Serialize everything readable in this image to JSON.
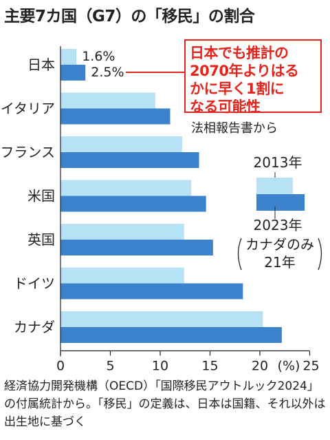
{
  "title": "主要7カ国（G7）の「移民」の割合",
  "callout": {
    "lines": [
      "日本でも推計の",
      "2070年よりはる",
      "かに早く1割に",
      "なる可能性"
    ]
  },
  "source": "法相報告書から",
  "legend": {
    "series_2013": "2013年",
    "series_2023": "2023年",
    "note_line1": "カナダのみ",
    "note_line2": "21年"
  },
  "footnote": "経済協力開発機構（OECD）「国際移民アウトルック2024」の付属統計から。「移民」の定義は、日本は国籍、それ以外は出生地に基づく",
  "colors": {
    "light": "#b7e1f4",
    "dark": "#3c82cc",
    "accent": "#e5231b"
  },
  "chart_data": {
    "type": "bar",
    "orientation": "horizontal",
    "title": "主要7カ国（G7）の「移民」の割合",
    "categories": [
      "日本",
      "イタリア",
      "フランス",
      "米国",
      "英国",
      "ドイツ",
      "カナダ"
    ],
    "series": [
      {
        "name": "2013年",
        "values": [
          1.6,
          9.5,
          12.2,
          13.1,
          12.4,
          12.4,
          20.3
        ]
      },
      {
        "name": "2023年",
        "values": [
          2.5,
          11.0,
          13.9,
          14.6,
          15.3,
          18.3,
          22.2
        ]
      }
    ],
    "data_labels": {
      "日本": [
        "1.6%",
        "2.5%"
      ]
    },
    "x_ticks": [
      "0",
      "5",
      "10",
      "15",
      "20",
      "25"
    ],
    "x_unit": "(%)",
    "xlim": [
      0,
      25
    ],
    "grid": false,
    "legend_position": "right"
  }
}
